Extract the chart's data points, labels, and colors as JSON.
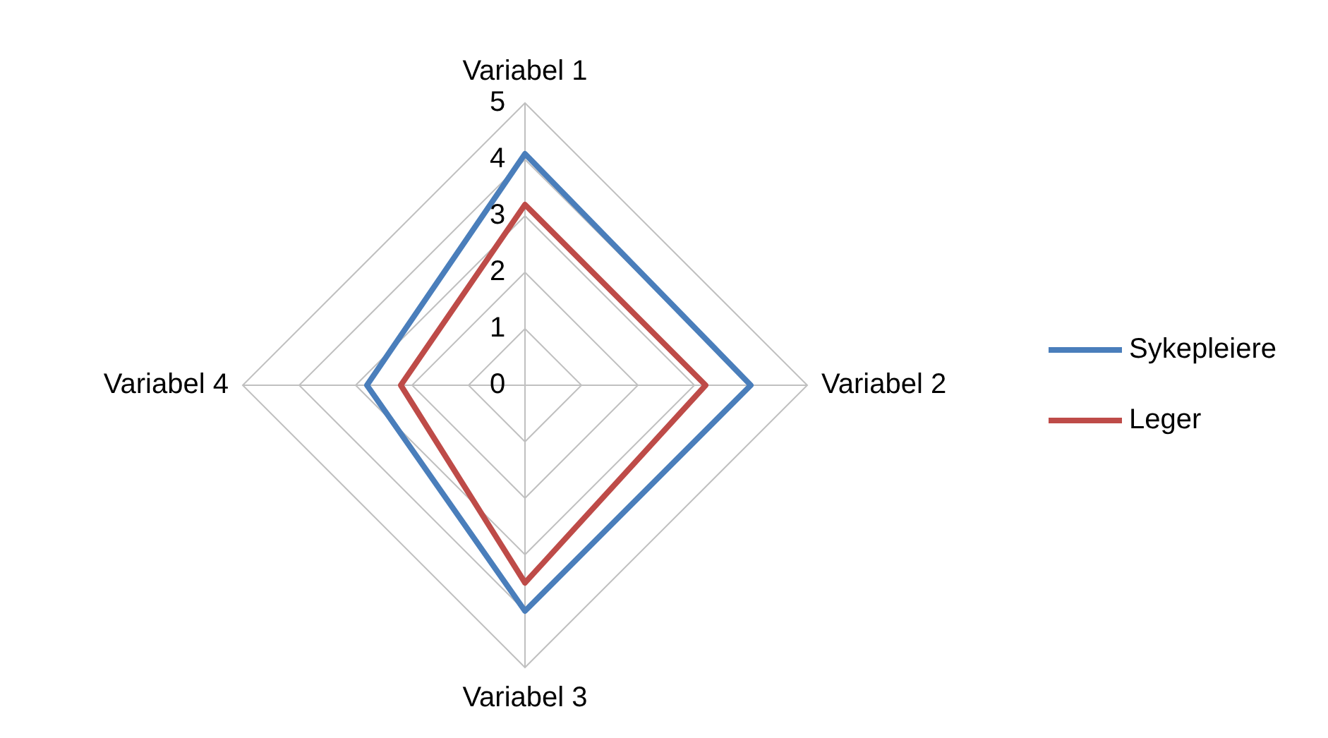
{
  "chart_data": {
    "type": "radar",
    "categories": [
      "Variabel 1",
      "Variabel 2",
      "Variabel 3",
      "Variabel 4"
    ],
    "series": [
      {
        "name": "Sykepleiere",
        "color": "#4a7ebb",
        "values": [
          4.1,
          4.0,
          4.0,
          2.8
        ]
      },
      {
        "name": "Leger",
        "color": "#be4b48",
        "values": [
          3.2,
          3.2,
          3.5,
          2.2
        ]
      }
    ],
    "ylim": [
      0,
      5
    ],
    "yticks": [
      0,
      1,
      2,
      3,
      4,
      5
    ],
    "grid": true,
    "legend": "right",
    "marker": "none"
  }
}
